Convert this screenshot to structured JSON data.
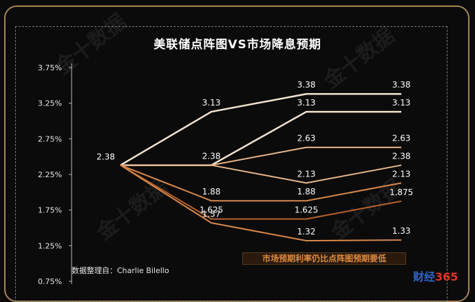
{
  "title": "美联储点阵图VS市场降息预期",
  "source": "数据整理自：Charlie Bilello",
  "note": "市场预期利率仍比点阵图预期要低",
  "watermark": "金十数据",
  "logo": {
    "text_a": "财经",
    "text_b": "365"
  },
  "colors": {
    "background": "#0b0b0b",
    "frame": "#a88657",
    "dot_plot_line": "#f3e4d0",
    "market_line_1": "#e8b68c",
    "market_line_2": "#d8884c",
    "market_line_3": "#b8622a"
  },
  "chart_data": {
    "type": "line",
    "title": "美联储点阵图VS市场降息预期",
    "xlabel": "",
    "ylabel": "",
    "ylim": [
      0.75,
      3.75
    ],
    "yticks": [
      "3.75%",
      "3.25%",
      "2.75%",
      "2.25%",
      "1.75%",
      "1.25%",
      "0.75%"
    ],
    "x": [
      0,
      1,
      2,
      3
    ],
    "series": [
      {
        "values": [
          2.38,
          3.13,
          3.38,
          3.38
        ],
        "labels": [
          "2.38",
          "3.13",
          "3.38",
          "3.38"
        ]
      },
      {
        "values": [
          2.38,
          2.38,
          3.13,
          3.13
        ],
        "labels": [
          "",
          "",
          "3.13",
          "3.13"
        ]
      },
      {
        "values": [
          2.38,
          2.38,
          2.63,
          2.63
        ],
        "labels": [
          "",
          "2.38",
          "2.63",
          "2.63"
        ]
      },
      {
        "values": [
          2.38,
          2.38,
          2.13,
          2.38
        ],
        "labels": [
          "",
          "",
          "2.13",
          "2.38"
        ]
      },
      {
        "values": [
          2.38,
          1.88,
          1.88,
          2.13
        ],
        "labels": [
          "",
          "1.88",
          "1.88",
          "2.13"
        ]
      },
      {
        "values": [
          2.38,
          1.625,
          1.625,
          1.875
        ],
        "labels": [
          "",
          "1.625",
          "1.625",
          "1.875"
        ]
      },
      {
        "values": [
          2.38,
          1.57,
          1.32,
          1.33
        ],
        "labels": [
          "",
          "1.57",
          "1.32",
          "1.33"
        ]
      }
    ]
  }
}
